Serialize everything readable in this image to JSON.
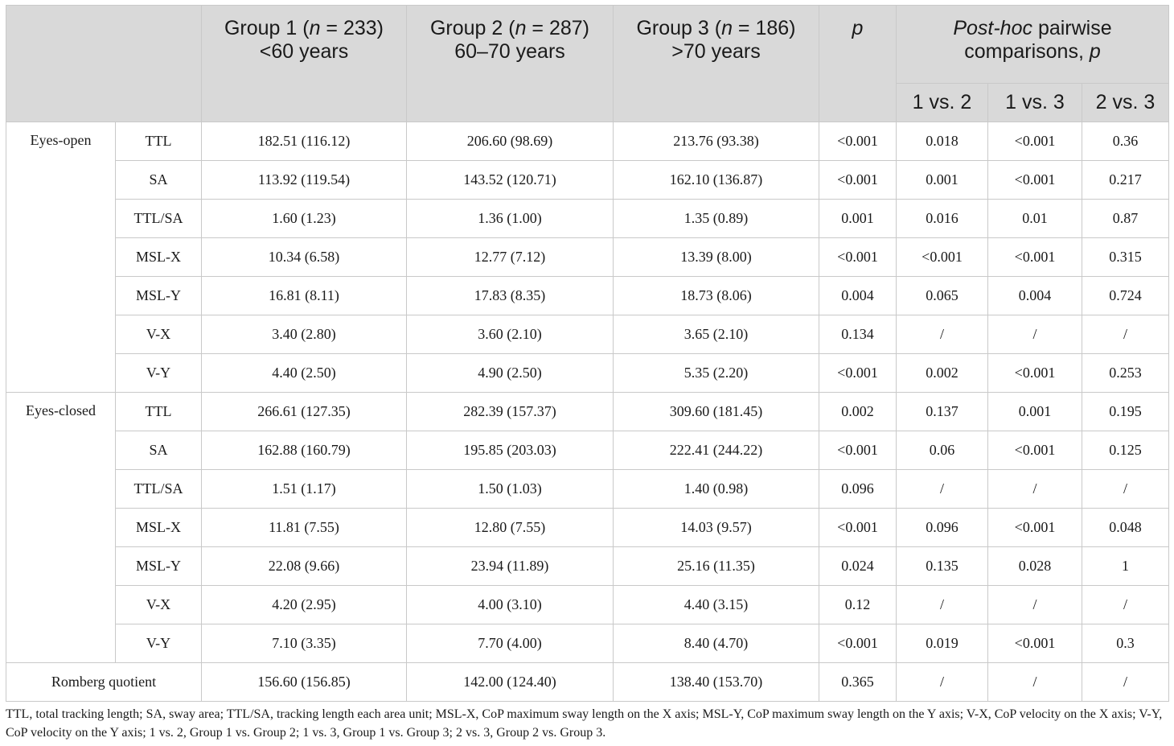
{
  "header": {
    "group1": {
      "prefix": "Group 1 (",
      "n_sym": "n",
      "suffix": " = 233)",
      "age": "<60 years"
    },
    "group2": {
      "prefix": "Group 2 (",
      "n_sym": "n",
      "suffix": " = 287)",
      "age": "60–70 years"
    },
    "group3": {
      "prefix": "Group 3 (",
      "n_sym": "n",
      "suffix": " = 186)",
      "age": ">70 years"
    },
    "p": "p",
    "posthoc": {
      "italic": "Post-hoc",
      "rest": " pairwise",
      "line2": "comparisons, ",
      "p": "p"
    },
    "sub": [
      "1 vs. 2",
      "1 vs. 3",
      "2 vs. 3"
    ]
  },
  "sections": [
    {
      "label": "Eyes-open",
      "rows": [
        [
          "TTL",
          "182.51 (116.12)",
          "206.60 (98.69)",
          "213.76 (93.38)",
          "<0.001",
          "0.018",
          "<0.001",
          "0.36"
        ],
        [
          "SA",
          "113.92 (119.54)",
          "143.52 (120.71)",
          "162.10 (136.87)",
          "<0.001",
          "0.001",
          "<0.001",
          "0.217"
        ],
        [
          "TTL/SA",
          "1.60 (1.23)",
          "1.36 (1.00)",
          "1.35 (0.89)",
          "0.001",
          "0.016",
          "0.01",
          "0.87"
        ],
        [
          "MSL-X",
          "10.34 (6.58)",
          "12.77 (7.12)",
          "13.39 (8.00)",
          "<0.001",
          "<0.001",
          "<0.001",
          "0.315"
        ],
        [
          "MSL-Y",
          "16.81 (8.11)",
          "17.83 (8.35)",
          "18.73 (8.06)",
          "0.004",
          "0.065",
          "0.004",
          "0.724"
        ],
        [
          "V-X",
          "3.40 (2.80)",
          "3.60 (2.10)",
          "3.65 (2.10)",
          "0.134",
          "/",
          "/",
          "/"
        ],
        [
          "V-Y",
          "4.40 (2.50)",
          "4.90 (2.50)",
          "5.35 (2.20)",
          "<0.001",
          "0.002",
          "<0.001",
          "0.253"
        ]
      ]
    },
    {
      "label": "Eyes-closed",
      "rows": [
        [
          "TTL",
          "266.61 (127.35)",
          "282.39 (157.37)",
          "309.60 (181.45)",
          "0.002",
          "0.137",
          "0.001",
          "0.195"
        ],
        [
          "SA",
          "162.88 (160.79)",
          "195.85 (203.03)",
          "222.41 (244.22)",
          "<0.001",
          "0.06",
          "<0.001",
          "0.125"
        ],
        [
          "TTL/SA",
          "1.51 (1.17)",
          "1.50 (1.03)",
          "1.40 (0.98)",
          "0.096",
          "/",
          "/",
          "/"
        ],
        [
          "MSL-X",
          "11.81 (7.55)",
          "12.80 (7.55)",
          "14.03 (9.57)",
          "<0.001",
          "0.096",
          "<0.001",
          "0.048"
        ],
        [
          "MSL-Y",
          "22.08 (9.66)",
          "23.94 (11.89)",
          "25.16 (11.35)",
          "0.024",
          "0.135",
          "0.028",
          "1"
        ],
        [
          "V-X",
          "4.20 (2.95)",
          "4.00 (3.10)",
          "4.40 (3.15)",
          "0.12",
          "/",
          "/",
          "/"
        ],
        [
          "V-Y",
          "7.10 (3.35)",
          "7.70 (4.00)",
          "8.40 (4.70)",
          "<0.001",
          "0.019",
          "<0.001",
          "0.3"
        ]
      ]
    }
  ],
  "romberg": [
    "Romberg quotient",
    "156.60 (156.85)",
    "142.00 (124.40)",
    "138.40 (153.70)",
    "0.365",
    "/",
    "/",
    "/"
  ],
  "footnote": "TTL, total tracking length; SA, sway area; TTL/SA, tracking length each area unit; MSL-X, CoP maximum sway length on the X axis; MSL-Y, CoP maximum sway length on the Y axis; V-X, CoP velocity on the X axis; V-Y, CoP velocity on the Y axis; 1 vs. 2, Group 1 vs. Group 2; 1 vs. 3, Group 1 vs. Group 3; 2 vs. 3, Group 2 vs. Group 3."
}
